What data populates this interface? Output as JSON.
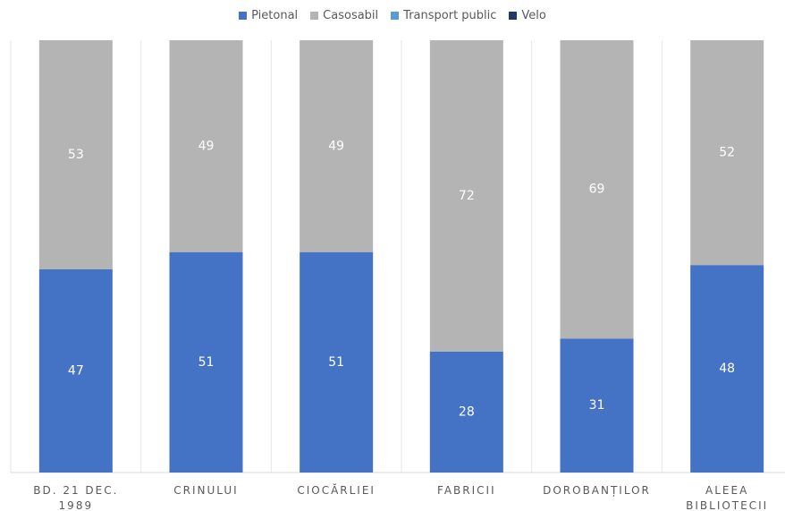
{
  "chart_data": {
    "type": "stacked-bar",
    "categories": [
      "BD. 21 DEC. 1989",
      "CRINULUI",
      "CIOCĂRLIEI",
      "FABRICII",
      "DOROBANȚILOR",
      "ALEEA BIBLIOTECII"
    ],
    "series": [
      {
        "name": "Pietonal",
        "color": "#4472c4",
        "values": [
          47,
          51,
          51,
          28,
          31,
          48
        ]
      },
      {
        "name": "Casosabil",
        "color": "#b4b4b4",
        "values": [
          53,
          49,
          49,
          72,
          69,
          52
        ]
      },
      {
        "name": "Transport public",
        "color": "#5b9bd5",
        "values": [
          0,
          0,
          0,
          0,
          0,
          0
        ]
      },
      {
        "name": "Velo",
        "color": "#203864",
        "values": [
          0,
          0,
          0,
          0,
          0,
          0
        ]
      }
    ],
    "legend": "top"
  }
}
